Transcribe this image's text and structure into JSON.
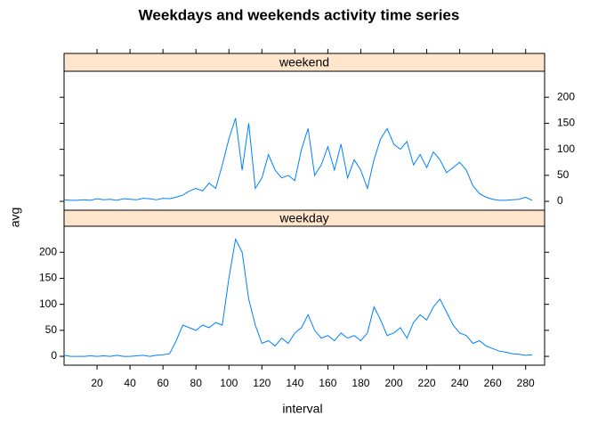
{
  "chart_data": {
    "type": "line",
    "title": "Weekdays and weekends activity time series",
    "xlabel": "interval",
    "ylabel": "avg",
    "x": [
      0,
      4,
      8,
      12,
      16,
      20,
      24,
      28,
      32,
      36,
      40,
      44,
      48,
      52,
      56,
      60,
      64,
      68,
      72,
      76,
      80,
      84,
      88,
      92,
      96,
      100,
      104,
      108,
      112,
      116,
      120,
      124,
      128,
      132,
      136,
      140,
      144,
      148,
      152,
      156,
      160,
      164,
      168,
      172,
      176,
      180,
      184,
      188,
      192,
      196,
      200,
      204,
      208,
      212,
      216,
      220,
      224,
      228,
      232,
      236,
      240,
      244,
      248,
      252,
      256,
      260,
      264,
      268,
      272,
      276,
      280,
      284
    ],
    "series": [
      {
        "name": "weekend",
        "color": "#0080ff",
        "values": [
          3,
          2,
          2,
          3,
          2,
          5,
          3,
          4,
          2,
          5,
          4,
          3,
          6,
          5,
          3,
          6,
          5,
          8,
          12,
          20,
          25,
          20,
          35,
          25,
          70,
          120,
          160,
          60,
          150,
          25,
          45,
          90,
          60,
          45,
          50,
          40,
          100,
          140,
          50,
          70,
          105,
          60,
          110,
          45,
          80,
          60,
          25,
          80,
          120,
          140,
          110,
          100,
          115,
          70,
          90,
          65,
          95,
          80,
          55,
          65,
          75,
          60,
          30,
          15,
          8,
          4,
          2,
          2,
          3,
          4,
          8,
          2
        ]
      },
      {
        "name": "weekday",
        "color": "#0080ff",
        "values": [
          2,
          0,
          0,
          0,
          1,
          0,
          1,
          0,
          2,
          0,
          0,
          1,
          2,
          0,
          2,
          3,
          5,
          30,
          60,
          55,
          50,
          60,
          55,
          65,
          60,
          150,
          225,
          200,
          110,
          60,
          25,
          30,
          20,
          35,
          25,
          45,
          55,
          80,
          50,
          35,
          40,
          30,
          45,
          35,
          40,
          30,
          45,
          95,
          70,
          40,
          45,
          55,
          35,
          65,
          80,
          70,
          95,
          110,
          85,
          60,
          45,
          40,
          25,
          30,
          20,
          15,
          10,
          8,
          5,
          4,
          2,
          3
        ]
      }
    ],
    "xlim": [
      0,
      291.5
    ],
    "ylim": [
      -17,
      250
    ],
    "xticks": [
      20,
      40,
      60,
      80,
      100,
      120,
      140,
      160,
      180,
      200,
      220,
      240,
      260,
      280
    ],
    "yticks": [
      0,
      50,
      100,
      150,
      200
    ],
    "strip_color": "#ffe5cc"
  }
}
